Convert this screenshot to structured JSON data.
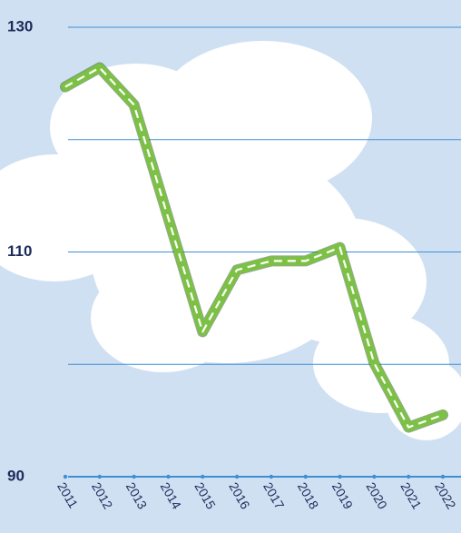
{
  "chart_data": {
    "type": "line",
    "categories": [
      "2011",
      "2012",
      "2013",
      "2014",
      "2015",
      "2016",
      "2017",
      "2018",
      "2019",
      "2020",
      "2021",
      "2022"
    ],
    "values": [
      124.7,
      126.4,
      123.1,
      113.0,
      102.9,
      108.4,
      109.2,
      109.2,
      110.4,
      100.1,
      94.4,
      95.5
    ],
    "color": "#7cc242",
    "ylim": [
      90,
      130
    ],
    "yticks": [
      90,
      110,
      130
    ],
    "minor_yticks": [
      100,
      120
    ],
    "grid": true,
    "grid_color": "#3f8ed3"
  }
}
